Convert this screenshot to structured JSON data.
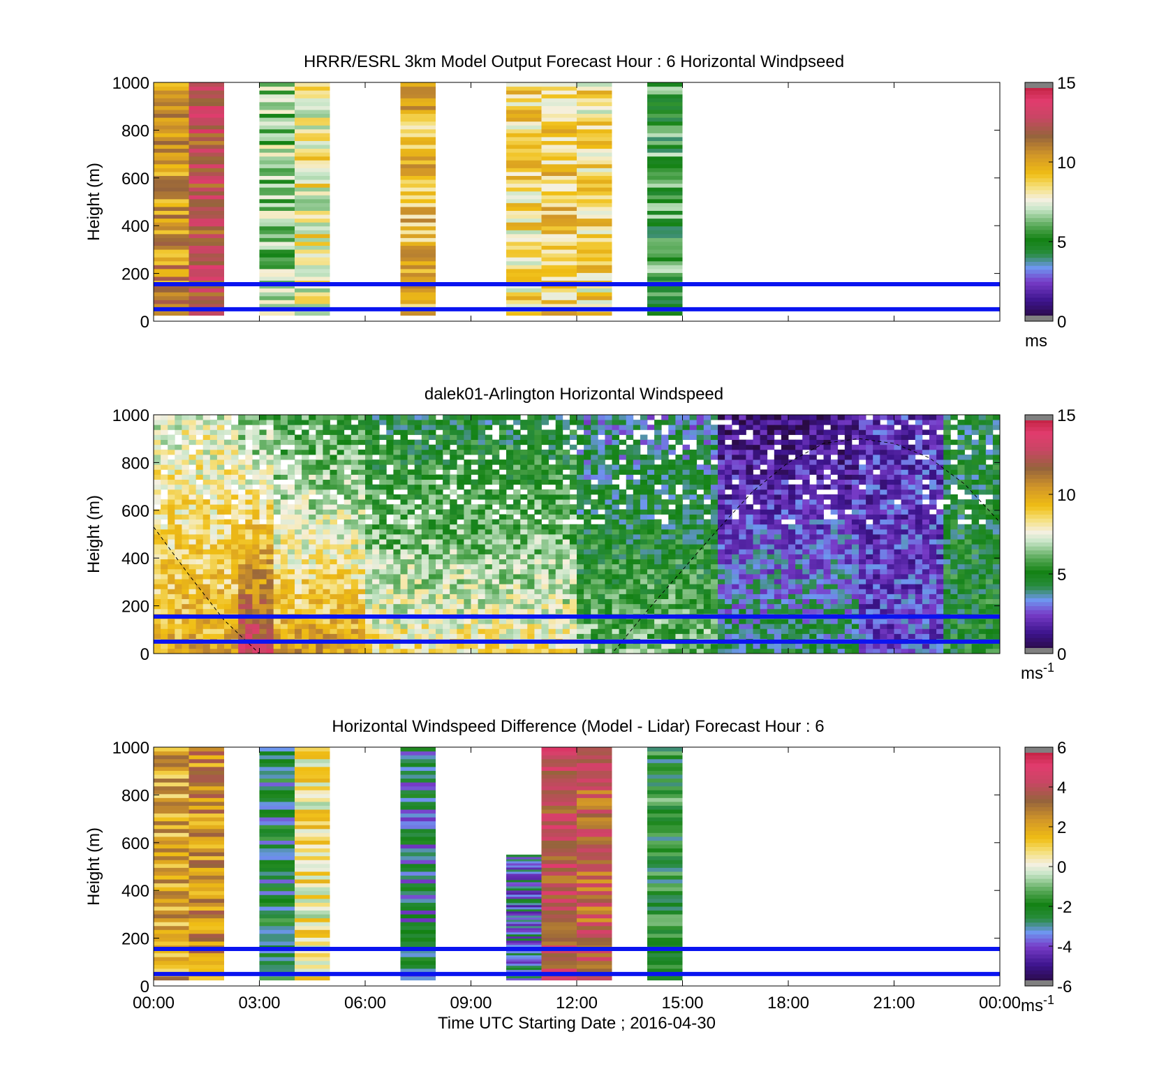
{
  "figure": {
    "xlabel": "Time UTC  Starting Date ; 2016-04-30",
    "x_ticks": [
      "00:00",
      "03:00",
      "06:00",
      "09:00",
      "12:00",
      "15:00",
      "18:00",
      "21:00",
      "00:00"
    ]
  },
  "chart_data": [
    {
      "type": "heatmap",
      "title": "HRRR/ESRL 3km Model Output   Forecast Hour : 6 Horizontal Windpseed",
      "ylabel": "Height (m)",
      "y_ticks": [
        "0",
        "200",
        "400",
        "600",
        "800",
        "1000"
      ],
      "ylim": [
        0,
        1000
      ],
      "xlim_hours": [
        0,
        24
      ],
      "colorbar": {
        "ticks": [
          "0",
          "5",
          "10",
          "15"
        ],
        "range": [
          0,
          15
        ],
        "unit_label": "ms",
        "unit_sup": ""
      },
      "reference_lines_m": [
        50,
        155
      ],
      "columns": [
        {
          "t_start": 0.0,
          "t_end": 1.0,
          "bottom": 25,
          "top": 1000,
          "value": 10.5
        },
        {
          "t_start": 1.0,
          "t_end": 2.0,
          "bottom": 25,
          "top": 1000,
          "value": 12.5
        },
        {
          "t_start": 3.0,
          "t_end": 4.0,
          "bottom": 25,
          "top": 1000,
          "value": 6.5
        },
        {
          "t_start": 4.0,
          "t_end": 5.0,
          "bottom": 25,
          "top": 1000,
          "value": 8.0
        },
        {
          "t_start": 7.0,
          "t_end": 8.0,
          "bottom": 25,
          "top": 1000,
          "value": 9.5
        },
        {
          "t_start": 10.0,
          "t_end": 11.0,
          "bottom": 25,
          "top": 1000,
          "value": 8.5
        },
        {
          "t_start": 11.0,
          "t_end": 12.0,
          "bottom": 25,
          "top": 1000,
          "value": 9.0
        },
        {
          "t_start": 12.0,
          "t_end": 13.0,
          "bottom": 25,
          "top": 1000,
          "value": 8.5
        },
        {
          "t_start": 14.0,
          "t_end": 15.0,
          "bottom": 25,
          "top": 1000,
          "value": 5.5
        }
      ]
    },
    {
      "type": "heatmap",
      "title": "dalek01-Arlington  Horizontal Windspeed",
      "ylabel": "Height (m)",
      "y_ticks": [
        "0",
        "200",
        "400",
        "600",
        "800",
        "1000"
      ],
      "ylim": [
        0,
        1000
      ],
      "xlim_hours": [
        0,
        24
      ],
      "colorbar": {
        "ticks": [
          "0",
          "5",
          "10",
          "15"
        ],
        "range": [
          0,
          15
        ],
        "unit_label": "ms",
        "unit_sup": "-1"
      },
      "reference_lines_m": [
        50,
        155
      ],
      "regimes": [
        {
          "t_start": 0.0,
          "t_end": 2.5,
          "value_low": 10.0,
          "value_high": 7.5
        },
        {
          "t_start": 2.5,
          "t_end": 3.5,
          "value_low": 13.5,
          "value_high": 6.0
        },
        {
          "t_start": 3.5,
          "t_end": 6.0,
          "value_low": 10.5,
          "value_high": 5.5
        },
        {
          "t_start": 6.0,
          "t_end": 12.0,
          "value_low": 8.5,
          "value_high": 4.5
        },
        {
          "t_start": 12.0,
          "t_end": 16.0,
          "value_low": 6.5,
          "value_high": 3.5
        },
        {
          "t_start": 16.0,
          "t_end": 20.0,
          "value_low": 4.5,
          "value_high": 1.0
        },
        {
          "t_start": 20.0,
          "t_end": 22.5,
          "value_low": 2.5,
          "value_high": 2.0
        },
        {
          "t_start": 22.5,
          "t_end": 24.0,
          "value_low": 5.0,
          "value_high": 4.5
        }
      ],
      "boundary_layer_curve": [
        [
          0.0,
          530
        ],
        [
          1.0,
          330
        ],
        [
          2.0,
          140
        ],
        [
          3.0,
          0
        ],
        [
          13.0,
          0
        ],
        [
          14.0,
          180
        ],
        [
          15.0,
          350
        ],
        [
          16.0,
          520
        ],
        [
          17.0,
          680
        ],
        [
          18.0,
          800
        ],
        [
          19.0,
          880
        ],
        [
          20.0,
          900
        ],
        [
          21.0,
          880
        ],
        [
          22.0,
          820
        ],
        [
          23.0,
          710
        ],
        [
          24.0,
          550
        ]
      ]
    },
    {
      "type": "heatmap",
      "title": "Horizontal Windspeed Difference (Model - Lidar) Forecast Hour : 6",
      "ylabel": "Height (m)",
      "y_ticks": [
        "0",
        "200",
        "400",
        "600",
        "800",
        "1000"
      ],
      "ylim": [
        0,
        1000
      ],
      "xlim_hours": [
        0,
        24
      ],
      "colorbar": {
        "ticks": [
          "-6",
          "-4",
          "-2",
          "0",
          "2",
          "4",
          "6"
        ],
        "range": [
          -6,
          6
        ],
        "unit_label": "ms",
        "unit_sup": "-1"
      },
      "reference_lines_m": [
        50,
        155
      ],
      "columns": [
        {
          "t_start": 0.0,
          "t_end": 1.0,
          "bottom": 25,
          "top": 1000,
          "value": 2.0
        },
        {
          "t_start": 1.0,
          "t_end": 2.0,
          "bottom": 25,
          "top": 1000,
          "value": 2.5
        },
        {
          "t_start": 3.0,
          "t_end": 4.0,
          "bottom": 25,
          "top": 1000,
          "value": -2.5
        },
        {
          "t_start": 4.0,
          "t_end": 5.0,
          "bottom": 25,
          "top": 1000,
          "value": 0.5
        },
        {
          "t_start": 7.0,
          "t_end": 8.0,
          "bottom": 25,
          "top": 1000,
          "value": -3.0
        },
        {
          "t_start": 10.0,
          "t_end": 11.0,
          "bottom": 25,
          "top": 550,
          "value": -3.5
        },
        {
          "t_start": 11.0,
          "t_end": 12.0,
          "bottom": 25,
          "top": 1000,
          "value": 4.0
        },
        {
          "t_start": 12.0,
          "t_end": 13.0,
          "bottom": 25,
          "top": 1000,
          "value": 3.5
        },
        {
          "t_start": 14.0,
          "t_end": 15.0,
          "bottom": 25,
          "top": 1000,
          "value": -2.0
        }
      ]
    }
  ]
}
